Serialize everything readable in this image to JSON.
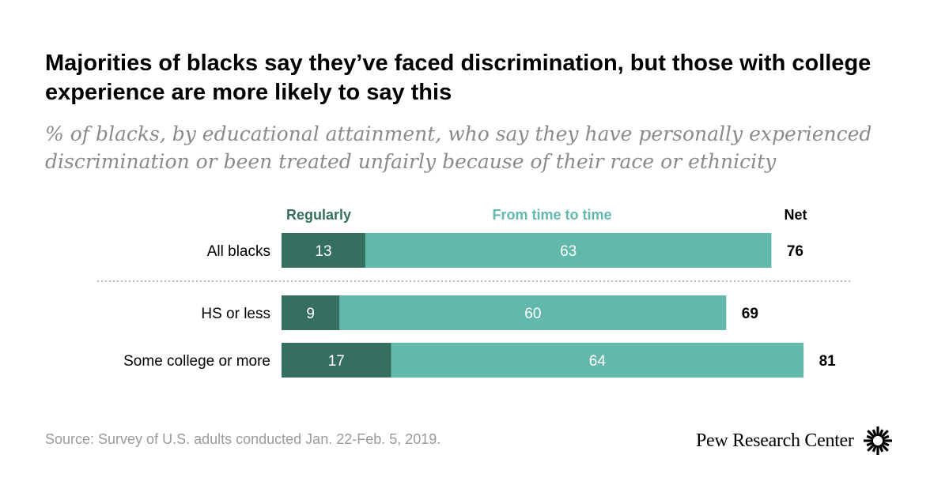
{
  "title": "Majorities of blacks say they’ve faced discrimination, but those with college experience are more likely to say this",
  "subtitle": "% of blacks, by educational attainment, who say they have personally experienced discrimination or been treated unfairly because of their race or ethnicity",
  "source": "Source: Survey of U.S. adults conducted Jan. 22-Feb. 5, 2019.",
  "logo_text": "Pew Research Center",
  "colors": {
    "regularly": "#356f5f",
    "time_to_time": "#62b8ab",
    "net": "#000000",
    "divider": "#9e9e9e"
  },
  "chart_data": {
    "type": "bar",
    "orientation": "horizontal",
    "stacked": true,
    "categories": [
      "All blacks",
      "HS or less",
      "Some college or more"
    ],
    "series": [
      {
        "name": "Regularly",
        "values": [
          13,
          9,
          17
        ]
      },
      {
        "name": "From time to time",
        "values": [
          63,
          60,
          64
        ]
      }
    ],
    "net_label": "Net",
    "net": [
      76,
      69,
      81
    ],
    "xlim": [
      0,
      100
    ]
  }
}
